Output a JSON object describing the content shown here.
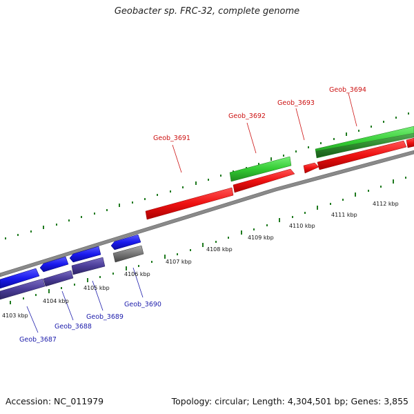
{
  "title": "Geobacter sp. FRC-32, complete genome",
  "accession": "Accession: NC_011979",
  "topology": "Topology: circular; Length: 4,304,501 bp; Genes: 3,855",
  "colors": {
    "forward_gene": "#ee1111",
    "forward_rna": "#33cc33",
    "reverse_gene": "#1a1aee",
    "reverse_other": "#4b3d99",
    "pseudo": "#777777",
    "backbone": "#8a8a8a",
    "tick": "#1f7a1f",
    "label_forward": "#cc1111",
    "label_reverse": "#1a1aaa"
  },
  "kbp_labels": [
    "4103 kbp",
    "4104 kbp",
    "4105 kbp",
    "4106 kbp",
    "4107 kbp",
    "4108 kbp",
    "4109 kbp",
    "4110 kbp",
    "4111 kbp",
    "4112 kbp"
  ],
  "gene_labels_forward": [
    "Geob_3691",
    "Geob_3692",
    "Geob_3693",
    "Geob_3694"
  ],
  "gene_labels_reverse": [
    "Geob_3687",
    "Geob_3688",
    "Geob_3689",
    "Geob_3690"
  ]
}
